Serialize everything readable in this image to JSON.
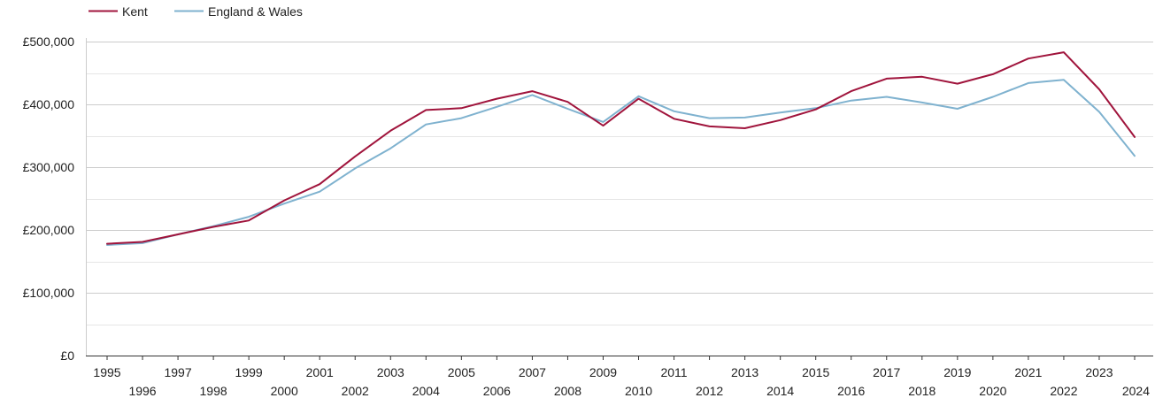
{
  "chart_data": {
    "type": "line",
    "title": "",
    "xlabel": "",
    "ylabel": "",
    "x": [
      1995,
      1996,
      1997,
      1998,
      1999,
      2000,
      2001,
      2002,
      2003,
      2004,
      2005,
      2006,
      2007,
      2008,
      2009,
      2010,
      2011,
      2012,
      2013,
      2014,
      2015,
      2016,
      2017,
      2018,
      2019,
      2020,
      2021,
      2022,
      2023,
      2024
    ],
    "x_tick_labels": [
      "1995",
      "1996",
      "1997",
      "1998",
      "1999",
      "2000",
      "2001",
      "2002",
      "2003",
      "2004",
      "2005",
      "2006",
      "2007",
      "2008",
      "2009",
      "2010",
      "2011",
      "2012",
      "2013",
      "2014",
      "2015",
      "2016",
      "2017",
      "2018",
      "2019",
      "2020",
      "2021",
      "2022",
      "2023",
      "2024"
    ],
    "y_ticks": [
      0,
      100000,
      200000,
      300000,
      400000,
      500000
    ],
    "y_tick_labels": [
      "£0",
      "£100,000",
      "£200,000",
      "£300,000",
      "£400,000",
      "£500,000"
    ],
    "ylim": [
      0,
      500000
    ],
    "grid": true,
    "legend_position": "top-left",
    "series": [
      {
        "name": "Kent",
        "color": "#a0143c",
        "values": [
          178000,
          181000,
          193000,
          205000,
          215000,
          247000,
          273000,
          317000,
          358000,
          391000,
          394000,
          409000,
          421000,
          404000,
          366000,
          409000,
          377000,
          365000,
          362000,
          375000,
          392000,
          421000,
          441000,
          444000,
          433000,
          448000,
          473000,
          483000,
          424000,
          348000
        ]
      },
      {
        "name": "England & Wales",
        "color": "#7fb2cf",
        "values": [
          176000,
          179000,
          193000,
          206000,
          221000,
          242000,
          261000,
          298000,
          330000,
          368000,
          378000,
          396000,
          415000,
          393000,
          372000,
          413000,
          389000,
          378000,
          379000,
          387000,
          394000,
          406000,
          412000,
          403000,
          393000,
          412000,
          434000,
          439000,
          388000,
          318000
        ]
      }
    ]
  }
}
